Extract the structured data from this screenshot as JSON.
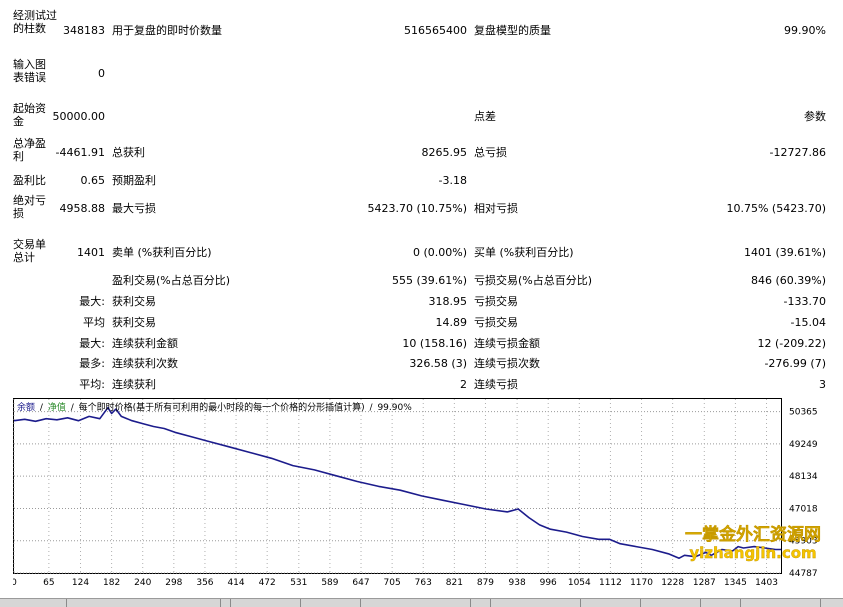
{
  "report": {
    "bars_label": "经测试过的柱数",
    "bars_value": "348183",
    "ticks_label": "用于复盘的即时价数量",
    "ticks_value": "516565400",
    "quality_label": "复盘模型的质量",
    "quality_value": "99.90%",
    "mismatch_label": "输入图表错误",
    "mismatch_value": "0",
    "deposit_label": "起始资金",
    "deposit_value": "50000.00",
    "spread_label": "点差",
    "spread_value": "参数",
    "net_label": "总净盈利",
    "net_value": "-4461.91",
    "gross_profit_label": "总获利",
    "gross_profit_value": "8265.95",
    "gross_loss_label": "总亏损",
    "gross_loss_value": "-12727.86",
    "pf_label": "盈利比",
    "pf_value": "0.65",
    "payoff_label": "预期盈利",
    "payoff_value": "-3.18",
    "abs_dd_label": "绝对亏损",
    "abs_dd_value": "4958.88",
    "max_dd_label": "最大亏损",
    "max_dd_value": "5423.70 (10.75%)",
    "rel_dd_label": "相对亏损",
    "rel_dd_value": "10.75% (5423.70)",
    "total_trades_label": "交易单总计",
    "total_trades_value": "1401",
    "short_label": "卖单 (%获利百分比)",
    "short_value": "0 (0.00%)",
    "long_label": "买单 (%获利百分比)",
    "long_value": "1401 (39.61%)",
    "profit_trades_label": "盈利交易(%占总百分比)",
    "profit_trades_value": "555 (39.61%)",
    "loss_trades_label": "亏损交易(%占总百分比)",
    "loss_trades_value": "846 (60.39%)",
    "largest_prefix": "最大:",
    "largest_profit_label": "获利交易",
    "largest_profit_value": "318.95",
    "largest_loss_label": "亏损交易",
    "largest_loss_value": "-133.70",
    "average_prefix": "平均",
    "avg_profit_label": "获利交易",
    "avg_profit_value": "14.89",
    "avg_loss_label": "亏损交易",
    "avg_loss_value": "-15.04",
    "max2_prefix": "最大:",
    "cons_win_money_label": "连续获利金额",
    "cons_win_money_value": "10 (158.16)",
    "cons_loss_money_label": "连续亏损金额",
    "cons_loss_money_value": "12 (-209.22)",
    "most_prefix": "最多:",
    "cons_profit_label": "连续获利次数",
    "cons_profit_value": "326.58 (3)",
    "cons_lossc_label": "连续亏损次数",
    "cons_lossc_value": "-276.99 (7)",
    "avg2_prefix": "平均:",
    "avg_cons_win_label": "连续获利",
    "avg_cons_win_value": "2",
    "avg_cons_loss_label": "连续亏损",
    "avg_cons_loss_value": "3"
  },
  "chart_header": {
    "balance": "余额",
    "sep1": "/",
    "equity": "净值",
    "sep2": "/",
    "model_text": "每个即时价格(基于所有可利用的最小时段的每一个价格的分形插值计算)",
    "sep3": "/",
    "quality": "99.90%"
  },
  "watermark": {
    "line1": "一掌金外汇资源网",
    "line2": "yizhangjin.com"
  },
  "colors": {
    "balance_line": "#1c1c8c",
    "watermark": "#f5c400",
    "header_balance": "#1c1c8c",
    "header_equity": "#2a8a2a"
  },
  "chart_data": {
    "type": "line",
    "title": "",
    "xlabel": "",
    "ylabel": "",
    "xlim": [
      0,
      1430
    ],
    "ylim": [
      44787,
      50800
    ],
    "x_ticks": [
      0,
      65,
      124,
      182,
      240,
      298,
      356,
      414,
      472,
      531,
      589,
      647,
      705,
      763,
      821,
      879,
      938,
      996,
      1054,
      1112,
      1170,
      1228,
      1287,
      1345,
      1403
    ],
    "y_ticks": [
      44787,
      45903,
      47018,
      48134,
      49249,
      50365
    ],
    "series": [
      {
        "color": "#1c1c8c",
        "x": [
          0,
          20,
          40,
          60,
          80,
          100,
          120,
          140,
          160,
          175,
          182,
          190,
          200,
          220,
          240,
          260,
          280,
          300,
          330,
          360,
          400,
          440,
          480,
          520,
          560,
          600,
          640,
          680,
          720,
          760,
          800,
          840,
          880,
          920,
          940,
          960,
          980,
          1000,
          1030,
          1060,
          1090,
          1110,
          1130,
          1160,
          1190,
          1220,
          1240,
          1250,
          1270,
          1290,
          1300,
          1320,
          1340,
          1350,
          1360,
          1380,
          1400,
          1420,
          1430
        ],
        "y": [
          50050,
          50100,
          50030,
          50120,
          50080,
          50150,
          50050,
          50200,
          50120,
          50500,
          50300,
          50450,
          50200,
          50050,
          49950,
          49850,
          49780,
          49650,
          49500,
          49350,
          49150,
          48950,
          48750,
          48500,
          48350,
          48150,
          47950,
          47780,
          47650,
          47450,
          47300,
          47150,
          47000,
          46900,
          47000,
          46700,
          46450,
          46300,
          46200,
          46050,
          45950,
          45950,
          45800,
          45700,
          45600,
          45450,
          45300,
          45400,
          45350,
          45500,
          45400,
          45600,
          45550,
          45700,
          45650,
          45700,
          45650,
          45600,
          45600
        ]
      }
    ]
  }
}
